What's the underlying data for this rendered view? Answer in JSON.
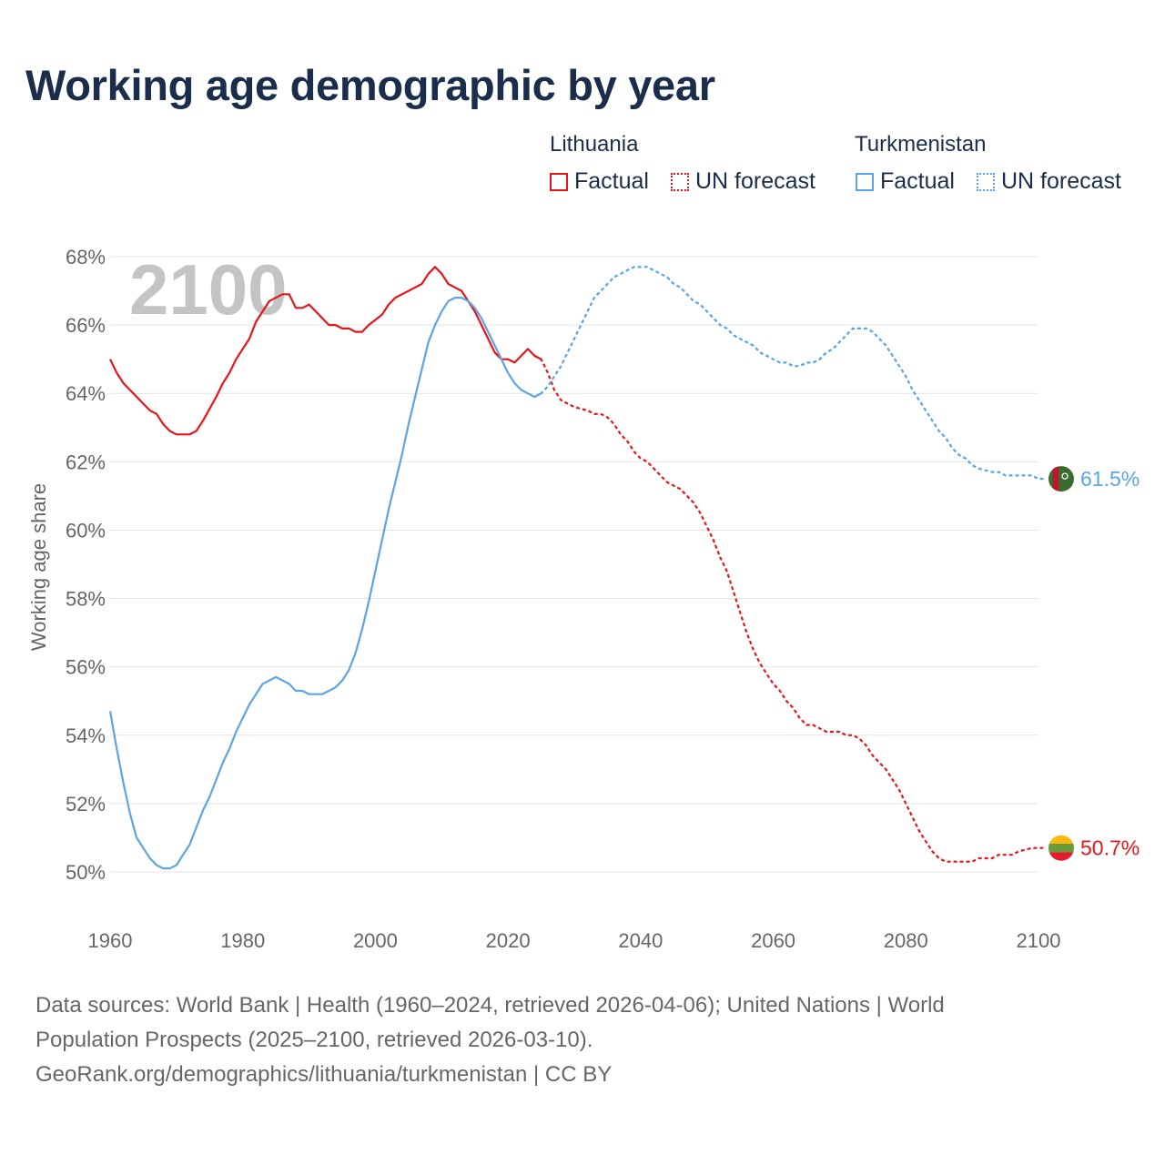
{
  "title": "Working age demographic by year",
  "legend": {
    "groups": [
      {
        "name": "Lithuania",
        "color": "#e8141b",
        "factual_label": "Factual",
        "forecast_label": "UN forecast"
      },
      {
        "name": "Turkmenistan",
        "color": "#5ba4e5",
        "factual_label": "Factual",
        "forecast_label": "UN forecast"
      }
    ]
  },
  "year_watermark": "2100",
  "sources": {
    "line1": "Data sources: World Bank | Health (1960–2024, retrieved 2026-04-06); United Nations | World",
    "line2": "Population Prospects (2025–2100, retrieved 2026-03-10).",
    "line3": "GeoRank.org/demographics/lithuania/turkmenistan | CC BY"
  },
  "chart_data": {
    "type": "line",
    "ylabel": "Working age share",
    "xlabel": "",
    "xlim": [
      1960,
      2100
    ],
    "ylim": [
      49,
      68.4
    ],
    "x_ticks": [
      1960,
      1980,
      2000,
      2020,
      2040,
      2060,
      2080,
      2100
    ],
    "y_ticks": [
      50,
      52,
      54,
      56,
      58,
      60,
      62,
      64,
      66,
      68
    ],
    "y_tick_labels": [
      "50%",
      "52%",
      "54%",
      "56%",
      "58%",
      "60%",
      "62%",
      "64%",
      "66%",
      "68%"
    ],
    "x_tick_labels": [
      "1960",
      "1980",
      "2000",
      "2020",
      "2040",
      "2060",
      "2080",
      "2100"
    ],
    "factual_end_year": 2024,
    "series": [
      {
        "name": "Lithuania",
        "color": "#e8141b",
        "end_label": "50.7%",
        "points": [
          [
            1960,
            65.0
          ],
          [
            1961,
            64.6
          ],
          [
            1962,
            64.3
          ],
          [
            1964,
            63.9
          ],
          [
            1966,
            63.5
          ],
          [
            1967,
            63.4
          ],
          [
            1968,
            63.1
          ],
          [
            1969,
            62.9
          ],
          [
            1970,
            62.8
          ],
          [
            1972,
            62.8
          ],
          [
            1973,
            62.9
          ],
          [
            1974,
            63.2
          ],
          [
            1976,
            63.9
          ],
          [
            1977,
            64.3
          ],
          [
            1978,
            64.6
          ],
          [
            1979,
            65.0
          ],
          [
            1980,
            65.3
          ],
          [
            1981,
            65.6
          ],
          [
            1982,
            66.1
          ],
          [
            1983,
            66.4
          ],
          [
            1984,
            66.7
          ],
          [
            1986,
            66.9
          ],
          [
            1987,
            66.9
          ],
          [
            1988,
            66.5
          ],
          [
            1989,
            66.5
          ],
          [
            1990,
            66.6
          ],
          [
            1991,
            66.4
          ],
          [
            1992,
            66.2
          ],
          [
            1993,
            66.0
          ],
          [
            1994,
            66.0
          ],
          [
            1995,
            65.9
          ],
          [
            1996,
            65.9
          ],
          [
            1997,
            65.8
          ],
          [
            1998,
            65.8
          ],
          [
            1999,
            66.0
          ],
          [
            2001,
            66.3
          ],
          [
            2002,
            66.6
          ],
          [
            2003,
            66.8
          ],
          [
            2004,
            66.9
          ],
          [
            2005,
            67.0
          ],
          [
            2006,
            67.1
          ],
          [
            2007,
            67.2
          ],
          [
            2008,
            67.5
          ],
          [
            2009,
            67.7
          ],
          [
            2010,
            67.5
          ],
          [
            2011,
            67.2
          ],
          [
            2012,
            67.1
          ],
          [
            2013,
            67.0
          ],
          [
            2014,
            66.7
          ],
          [
            2015,
            66.4
          ],
          [
            2016,
            66.0
          ],
          [
            2017,
            65.6
          ],
          [
            2018,
            65.2
          ],
          [
            2019,
            65.0
          ],
          [
            2020,
            65.0
          ],
          [
            2021,
            64.9
          ],
          [
            2022,
            65.1
          ],
          [
            2023,
            65.3
          ],
          [
            2024,
            65.1
          ],
          [
            2025,
            65.0
          ],
          [
            2026,
            64.6
          ],
          [
            2027,
            64.1
          ],
          [
            2028,
            63.8
          ],
          [
            2029,
            63.7
          ],
          [
            2030,
            63.6
          ],
          [
            2032,
            63.5
          ],
          [
            2033,
            63.4
          ],
          [
            2034,
            63.4
          ],
          [
            2035,
            63.3
          ],
          [
            2036,
            63.1
          ],
          [
            2037,
            62.8
          ],
          [
            2038,
            62.6
          ],
          [
            2039,
            62.3
          ],
          [
            2040,
            62.1
          ],
          [
            2041,
            62.0
          ],
          [
            2042,
            61.8
          ],
          [
            2043,
            61.6
          ],
          [
            2044,
            61.4
          ],
          [
            2045,
            61.3
          ],
          [
            2046,
            61.2
          ],
          [
            2047,
            61.0
          ],
          [
            2048,
            60.8
          ],
          [
            2049,
            60.5
          ],
          [
            2050,
            60.1
          ],
          [
            2051,
            59.7
          ],
          [
            2052,
            59.2
          ],
          [
            2053,
            58.8
          ],
          [
            2054,
            58.2
          ],
          [
            2055,
            57.6
          ],
          [
            2056,
            57.0
          ],
          [
            2057,
            56.5
          ],
          [
            2058,
            56.1
          ],
          [
            2059,
            55.8
          ],
          [
            2060,
            55.5
          ],
          [
            2061,
            55.3
          ],
          [
            2062,
            55.0
          ],
          [
            2063,
            54.8
          ],
          [
            2064,
            54.5
          ],
          [
            2065,
            54.3
          ],
          [
            2066,
            54.3
          ],
          [
            2067,
            54.2
          ],
          [
            2068,
            54.1
          ],
          [
            2070,
            54.1
          ],
          [
            2071,
            54.0
          ],
          [
            2072,
            54.0
          ],
          [
            2073,
            53.9
          ],
          [
            2074,
            53.7
          ],
          [
            2075,
            53.4
          ],
          [
            2076,
            53.2
          ],
          [
            2077,
            53.0
          ],
          [
            2078,
            52.7
          ],
          [
            2079,
            52.4
          ],
          [
            2080,
            52.0
          ],
          [
            2081,
            51.6
          ],
          [
            2082,
            51.2
          ],
          [
            2083,
            50.9
          ],
          [
            2084,
            50.6
          ],
          [
            2085,
            50.4
          ],
          [
            2086,
            50.3
          ],
          [
            2090,
            50.3
          ],
          [
            2091,
            50.4
          ],
          [
            2093,
            50.4
          ],
          [
            2094,
            50.5
          ],
          [
            2096,
            50.5
          ],
          [
            2097,
            50.6
          ],
          [
            2099,
            50.7
          ],
          [
            2101,
            50.7
          ]
        ]
      },
      {
        "name": "Turkmenistan",
        "color": "#5ba4e5",
        "end_label": "61.5%",
        "points": [
          [
            1960,
            54.7
          ],
          [
            1961,
            53.6
          ],
          [
            1962,
            52.6
          ],
          [
            1963,
            51.7
          ],
          [
            1964,
            51.0
          ],
          [
            1965,
            50.7
          ],
          [
            1966,
            50.4
          ],
          [
            1967,
            50.2
          ],
          [
            1968,
            50.1
          ],
          [
            1969,
            50.1
          ],
          [
            1970,
            50.2
          ],
          [
            1971,
            50.5
          ],
          [
            1972,
            50.8
          ],
          [
            1973,
            51.3
          ],
          [
            1974,
            51.8
          ],
          [
            1975,
            52.2
          ],
          [
            1976,
            52.7
          ],
          [
            1977,
            53.2
          ],
          [
            1978,
            53.6
          ],
          [
            1979,
            54.1
          ],
          [
            1980,
            54.5
          ],
          [
            1981,
            54.9
          ],
          [
            1982,
            55.2
          ],
          [
            1983,
            55.5
          ],
          [
            1984,
            55.6
          ],
          [
            1985,
            55.7
          ],
          [
            1986,
            55.6
          ],
          [
            1987,
            55.5
          ],
          [
            1988,
            55.3
          ],
          [
            1989,
            55.3
          ],
          [
            1990,
            55.2
          ],
          [
            1992,
            55.2
          ],
          [
            1993,
            55.3
          ],
          [
            1994,
            55.4
          ],
          [
            1995,
            55.6
          ],
          [
            1996,
            55.9
          ],
          [
            1997,
            56.4
          ],
          [
            1998,
            57.1
          ],
          [
            1999,
            57.9
          ],
          [
            2000,
            58.8
          ],
          [
            2001,
            59.7
          ],
          [
            2002,
            60.6
          ],
          [
            2003,
            61.4
          ],
          [
            2004,
            62.2
          ],
          [
            2005,
            63.1
          ],
          [
            2006,
            63.9
          ],
          [
            2007,
            64.7
          ],
          [
            2008,
            65.5
          ],
          [
            2009,
            66.0
          ],
          [
            2010,
            66.4
          ],
          [
            2011,
            66.7
          ],
          [
            2012,
            66.8
          ],
          [
            2013,
            66.8
          ],
          [
            2014,
            66.7
          ],
          [
            2015,
            66.5
          ],
          [
            2016,
            66.2
          ],
          [
            2017,
            65.8
          ],
          [
            2018,
            65.4
          ],
          [
            2019,
            65.0
          ],
          [
            2020,
            64.6
          ],
          [
            2021,
            64.3
          ],
          [
            2022,
            64.1
          ],
          [
            2023,
            64.0
          ],
          [
            2024,
            63.9
          ],
          [
            2025,
            64.0
          ],
          [
            2026,
            64.2
          ],
          [
            2027,
            64.5
          ],
          [
            2028,
            64.8
          ],
          [
            2029,
            65.2
          ],
          [
            2030,
            65.6
          ],
          [
            2031,
            66.0
          ],
          [
            2032,
            66.4
          ],
          [
            2033,
            66.8
          ],
          [
            2034,
            67.0
          ],
          [
            2035,
            67.2
          ],
          [
            2036,
            67.4
          ],
          [
            2037,
            67.5
          ],
          [
            2038,
            67.6
          ],
          [
            2039,
            67.7
          ],
          [
            2040,
            67.7
          ],
          [
            2041,
            67.7
          ],
          [
            2042,
            67.6
          ],
          [
            2043,
            67.5
          ],
          [
            2044,
            67.4
          ],
          [
            2045,
            67.2
          ],
          [
            2046,
            67.1
          ],
          [
            2047,
            66.9
          ],
          [
            2048,
            66.7
          ],
          [
            2049,
            66.6
          ],
          [
            2050,
            66.4
          ],
          [
            2051,
            66.2
          ],
          [
            2052,
            66.0
          ],
          [
            2053,
            65.9
          ],
          [
            2054,
            65.7
          ],
          [
            2055,
            65.6
          ],
          [
            2056,
            65.5
          ],
          [
            2057,
            65.4
          ],
          [
            2058,
            65.2
          ],
          [
            2059,
            65.1
          ],
          [
            2060,
            65.0
          ],
          [
            2061,
            64.9
          ],
          [
            2062,
            64.9
          ],
          [
            2063,
            64.8
          ],
          [
            2064,
            64.8
          ],
          [
            2065,
            64.9
          ],
          [
            2066,
            64.9
          ],
          [
            2067,
            65.0
          ],
          [
            2068,
            65.2
          ],
          [
            2069,
            65.3
          ],
          [
            2070,
            65.5
          ],
          [
            2071,
            65.7
          ],
          [
            2072,
            65.9
          ],
          [
            2073,
            65.9
          ],
          [
            2074,
            65.9
          ],
          [
            2075,
            65.8
          ],
          [
            2076,
            65.6
          ],
          [
            2077,
            65.4
          ],
          [
            2078,
            65.1
          ],
          [
            2079,
            64.8
          ],
          [
            2080,
            64.5
          ],
          [
            2081,
            64.1
          ],
          [
            2082,
            63.8
          ],
          [
            2083,
            63.5
          ],
          [
            2084,
            63.2
          ],
          [
            2085,
            62.9
          ],
          [
            2086,
            62.7
          ],
          [
            2087,
            62.4
          ],
          [
            2088,
            62.2
          ],
          [
            2089,
            62.1
          ],
          [
            2090,
            61.9
          ],
          [
            2091,
            61.8
          ],
          [
            2093,
            61.7
          ],
          [
            2094,
            61.7
          ],
          [
            2095,
            61.6
          ],
          [
            2099,
            61.6
          ],
          [
            2100,
            61.5
          ],
          [
            2101,
            61.5
          ]
        ]
      }
    ]
  }
}
